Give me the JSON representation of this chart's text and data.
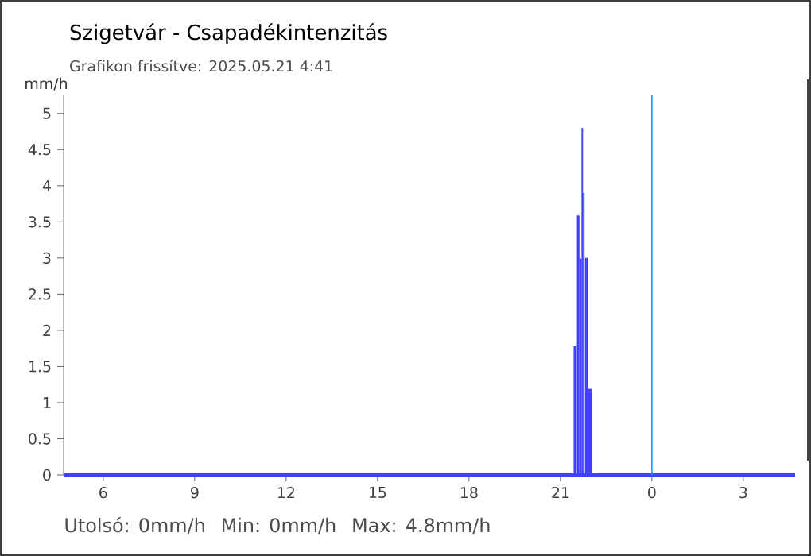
{
  "chart_data": {
    "type": "bar",
    "title": "Szigetvár - Csapadékintenzitás",
    "subtitle": "Grafikon frissítve: 2025.05.21 4:41",
    "ylabel": "mm/h",
    "x": [
      "2025-05-20T21:29",
      "2025-05-20T21:35",
      "2025-05-20T21:40",
      "2025-05-20T21:43",
      "2025-05-20T21:46",
      "2025-05-20T21:51",
      "2025-05-20T21:58"
    ],
    "series": [
      {
        "color": "#4040ff",
        "values": [
          1.78,
          3.59,
          2.99,
          4.8,
          3.9,
          3.0,
          1.19
        ]
      }
    ],
    "xlim": [
      "2025-05-20T04:42",
      "2025-05-21T04:42"
    ],
    "xticks": [
      {
        "value": "2025-05-20T06:00",
        "label": "6"
      },
      {
        "value": "2025-05-20T09:00",
        "label": "9"
      },
      {
        "value": "2025-05-20T12:00",
        "label": "12"
      },
      {
        "value": "2025-05-20T15:00",
        "label": "15"
      },
      {
        "value": "2025-05-20T18:00",
        "label": "18"
      },
      {
        "value": "2025-05-20T21:00",
        "label": "21"
      },
      {
        "value": "2025-05-21T00:00",
        "label": "0"
      },
      {
        "value": "2025-05-21T03:00",
        "label": "3"
      }
    ],
    "ylim": [
      0,
      5.25
    ],
    "yticks": [
      0,
      0.5,
      1,
      1.5,
      2,
      2.5,
      3,
      3.5,
      4,
      4.5,
      5
    ],
    "ref_lines": [
      {
        "axis": "x",
        "value": "2025-05-21T00:00",
        "color": "#1e9be6"
      }
    ],
    "annotations": [
      "Utolsó: 0mm/h",
      "Min: 0mm/h",
      "Max: 4.8mm/h"
    ],
    "grid": false
  }
}
